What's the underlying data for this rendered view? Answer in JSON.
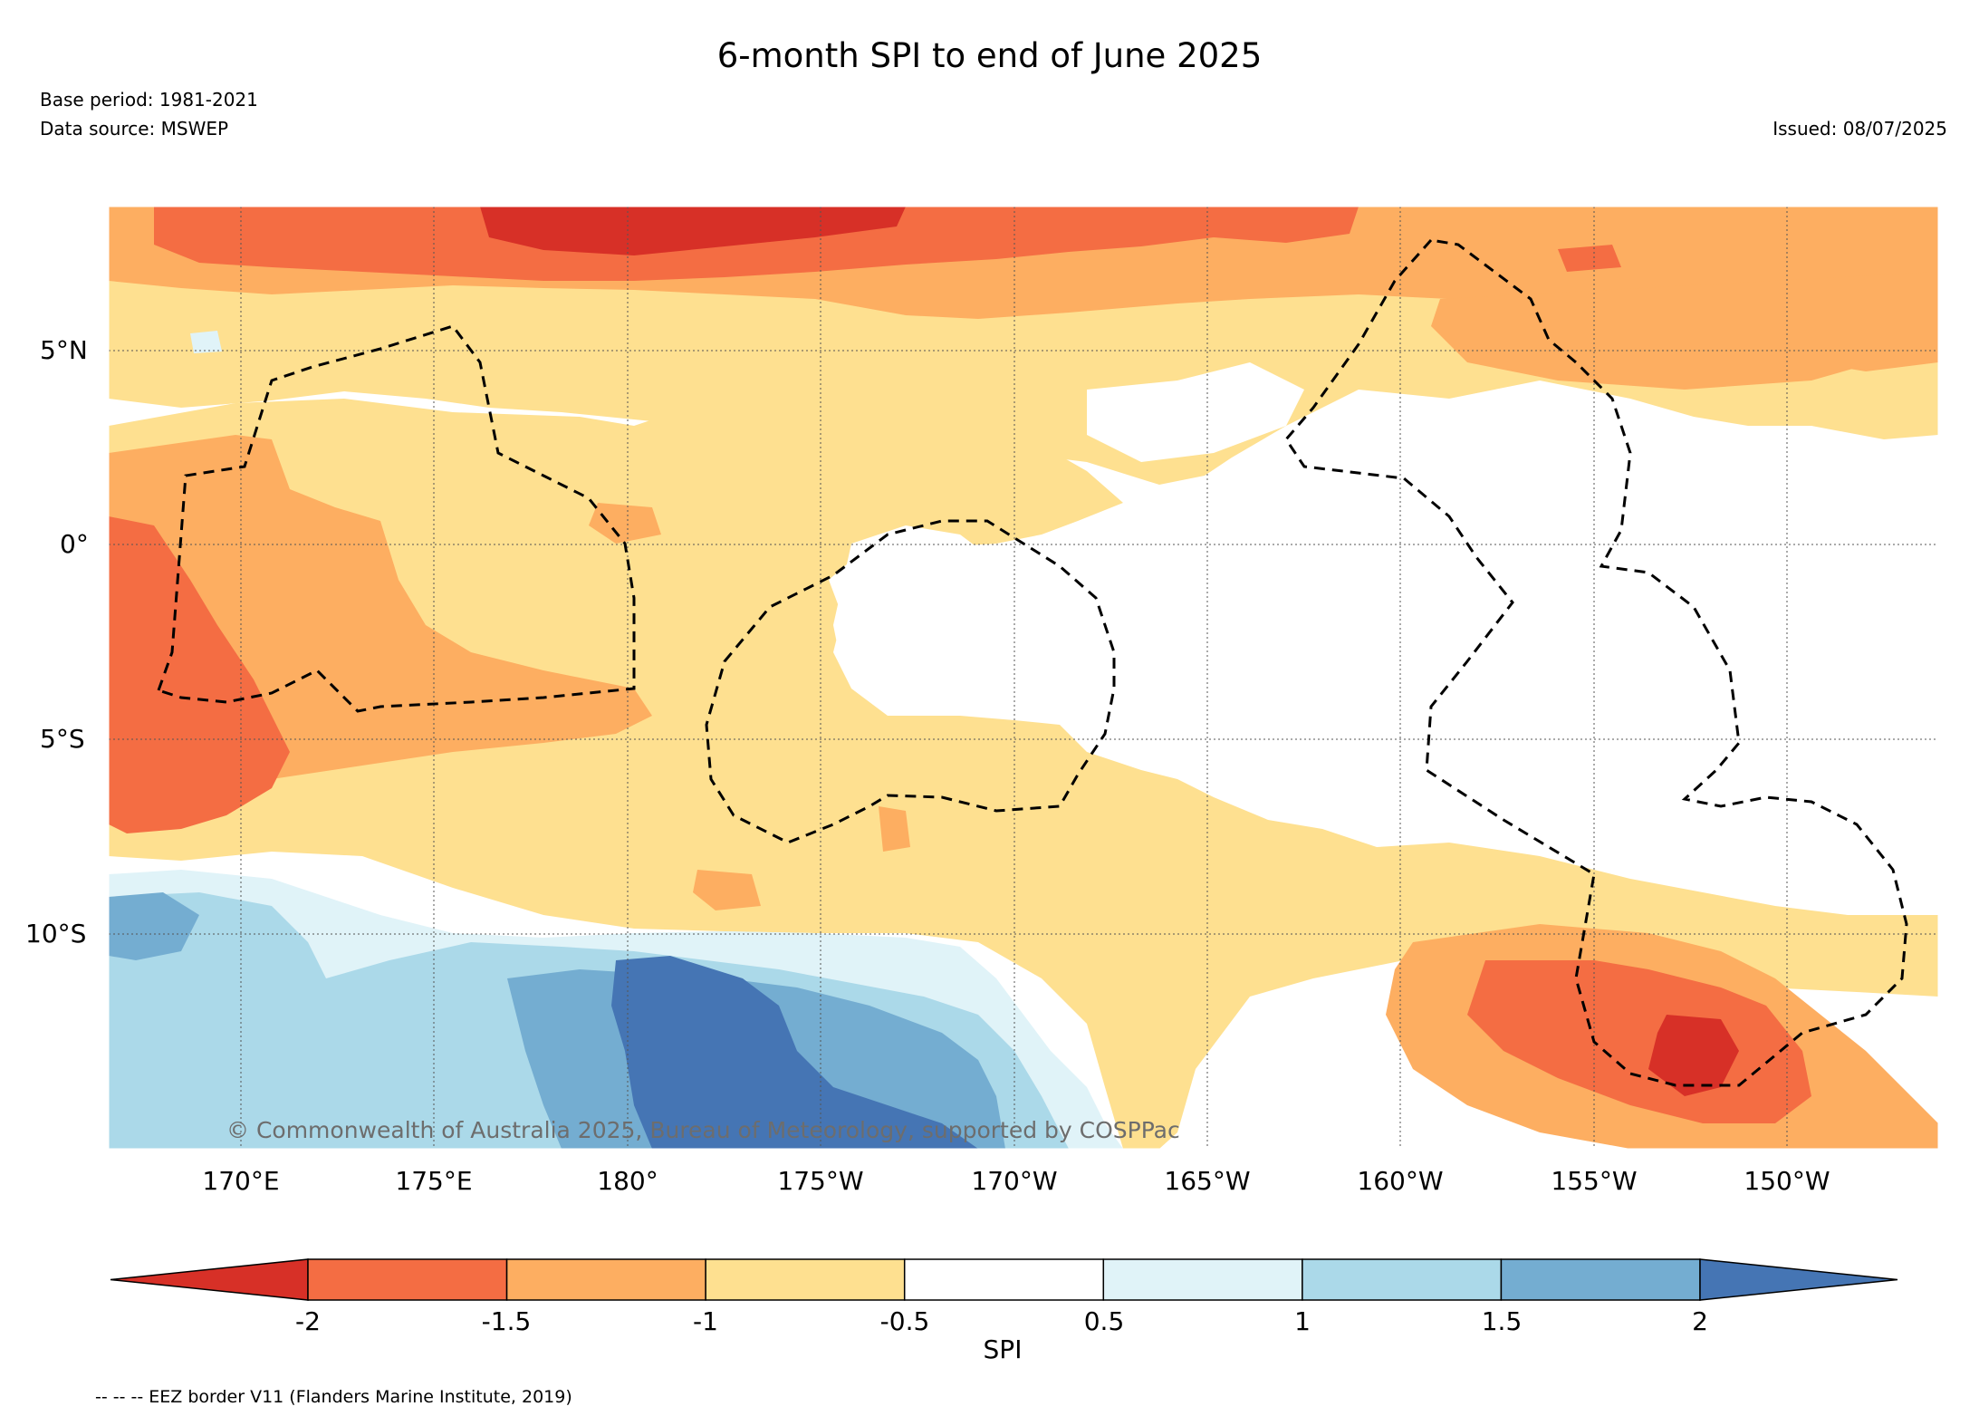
{
  "title": "6-month SPI to end of June 2025",
  "base_period": "Base period: 1981-2021",
  "data_source": "Data source: MSWEP",
  "issued": "Issued: 08/07/2025",
  "copyright": "© Commonwealth of Australia 2025, Bureau of Meteorology, supported by COSPPac",
  "footnote": "-- -- -- EEZ border V11 (Flanders Marine Institute, 2019)",
  "lat_labels": [
    "5°N",
    "0°",
    "5°S",
    "10°S"
  ],
  "lon_labels": [
    "170°E",
    "175°E",
    "180°",
    "175°W",
    "170°W",
    "165°W",
    "160°W",
    "155°W",
    "150°W"
  ],
  "colorbar": {
    "label": "SPI",
    "ticks": [
      "-2",
      "-1.5",
      "-1",
      "-0.5",
      "0.5",
      "1",
      "1.5",
      "2"
    ],
    "colors": [
      "#d73027",
      "#f46d43",
      "#fdae61",
      "#fee090",
      "#ffffff",
      "#e0f3f8",
      "#abd9e9",
      "#74add1",
      "#4575b4"
    ]
  },
  "legend_colors": {
    "spi_le_-2": "#d73027",
    "spi_-2_-1.5": "#f46d43",
    "spi_-1.5_-1": "#fdae61",
    "spi_-1_-0.5": "#fee090",
    "spi_-0.5_0.5": "#ffffff",
    "spi_0.5_1": "#e0f3f8",
    "spi_1_1.5": "#abd9e9",
    "spi_1.5_2": "#74add1",
    "spi_ge_2": "#4575b4"
  }
}
